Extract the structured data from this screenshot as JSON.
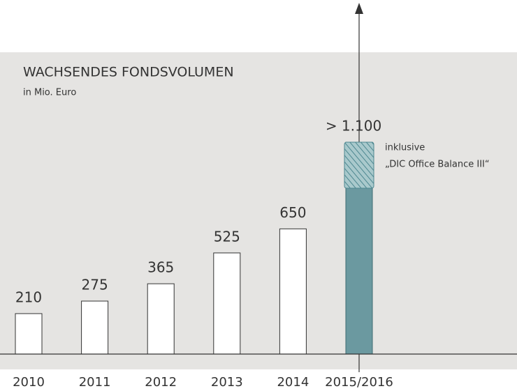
{
  "chart_data": {
    "type": "bar",
    "title": "WACHSENDES FONDSVOLUMEN",
    "subtitle": "in Mio. Euro",
    "categories": [
      "2010",
      "2011",
      "2012",
      "2013",
      "2014",
      "2015/2016"
    ],
    "values": [
      210,
      275,
      365,
      525,
      650,
      1100
    ],
    "value_labels": [
      "210",
      "275",
      "365",
      "525",
      "650",
      "> 1.100"
    ],
    "colors": [
      "#ffffff",
      "#ffffff",
      "#ffffff",
      "#ffffff",
      "#ffffff",
      "#6b99a0"
    ],
    "annotation": [
      "inklusive",
      "„DIC Office Balance III“"
    ]
  }
}
